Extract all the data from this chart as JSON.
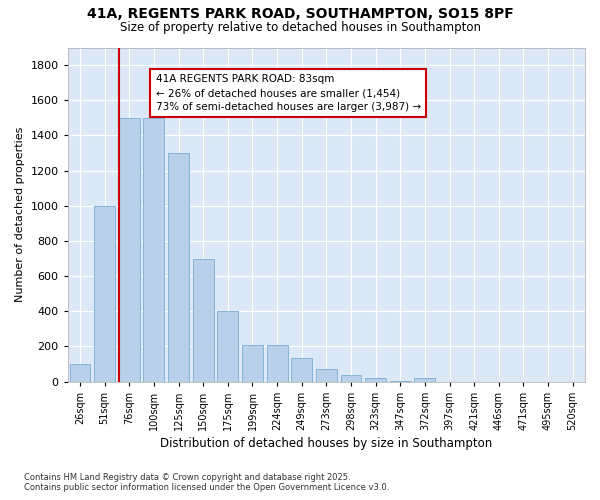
{
  "title1": "41A, REGENTS PARK ROAD, SOUTHAMPTON, SO15 8PF",
  "title2": "Size of property relative to detached houses in Southampton",
  "xlabel": "Distribution of detached houses by size in Southampton",
  "ylabel": "Number of detached properties",
  "categories": [
    "26sqm",
    "51sqm",
    "76sqm",
    "100sqm",
    "125sqm",
    "150sqm",
    "175sqm",
    "199sqm",
    "224sqm",
    "249sqm",
    "273sqm",
    "298sqm",
    "323sqm",
    "347sqm",
    "372sqm",
    "397sqm",
    "421sqm",
    "446sqm",
    "471sqm",
    "495sqm",
    "520sqm"
  ],
  "values": [
    100,
    1000,
    1500,
    1500,
    1300,
    700,
    400,
    210,
    210,
    135,
    70,
    35,
    20,
    5,
    20,
    0,
    0,
    0,
    0,
    0,
    0
  ],
  "bar_color": "#b8d0ea",
  "bar_edge_color": "#7aaed4",
  "red_line_index": 2,
  "annotation_title": "41A REGENTS PARK ROAD: 83sqm",
  "annotation_line1": "← 26% of detached houses are smaller (1,454)",
  "annotation_line2": "73% of semi-detached houses are larger (3,987) →",
  "annotation_box_color": "#ffffff",
  "annotation_box_edge": "#cc0000",
  "red_line_color": "#cc0000",
  "ylim": [
    0,
    1900
  ],
  "yticks": [
    0,
    200,
    400,
    600,
    800,
    1000,
    1200,
    1400,
    1600,
    1800
  ],
  "footer1": "Contains HM Land Registry data © Crown copyright and database right 2025.",
  "footer2": "Contains public sector information licensed under the Open Government Licence v3.0.",
  "plot_bg_color": "#dce8f5",
  "fig_bg_color": "#ffffff",
  "grid_color": "#ffffff"
}
